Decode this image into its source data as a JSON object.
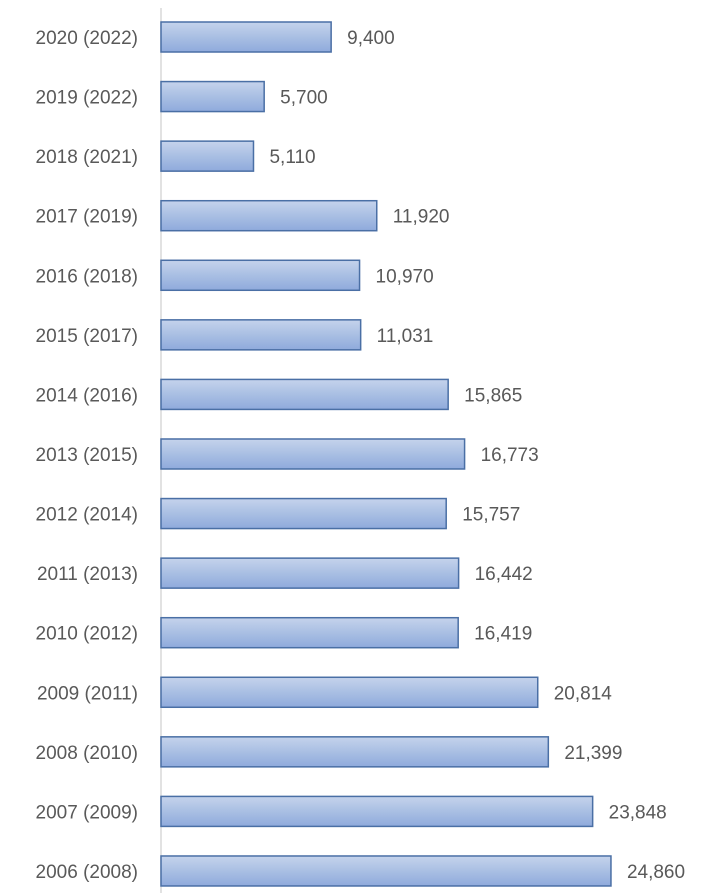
{
  "chart_data": {
    "type": "bar",
    "orientation": "horizontal",
    "categories": [
      "2020 (2022)",
      "2019 (2022)",
      "2018 (2021)",
      "2017 (2019)",
      "2016 (2018)",
      "2015 (2017)",
      "2014 (2016)",
      "2013 (2015)",
      "2012 (2014)",
      "2011 (2013)",
      "2010 (2012)",
      "2009 (2011)",
      "2008 (2010)",
      "2007 (2009)",
      "2006 (2008)"
    ],
    "values": [
      9400,
      5700,
      5110,
      11920,
      10970,
      11031,
      15865,
      16773,
      15757,
      16442,
      16419,
      20814,
      21399,
      23848,
      24860
    ],
    "value_labels": [
      "9,400",
      "5,700",
      "5,110",
      "11,920",
      "10,970",
      "11,031",
      "15,865",
      "16,773",
      "15,757",
      "16,442",
      "16,419",
      "20,814",
      "21,399",
      "23,848",
      "24,860"
    ],
    "color": "#8faadc",
    "xlim": [
      0,
      30000
    ]
  }
}
